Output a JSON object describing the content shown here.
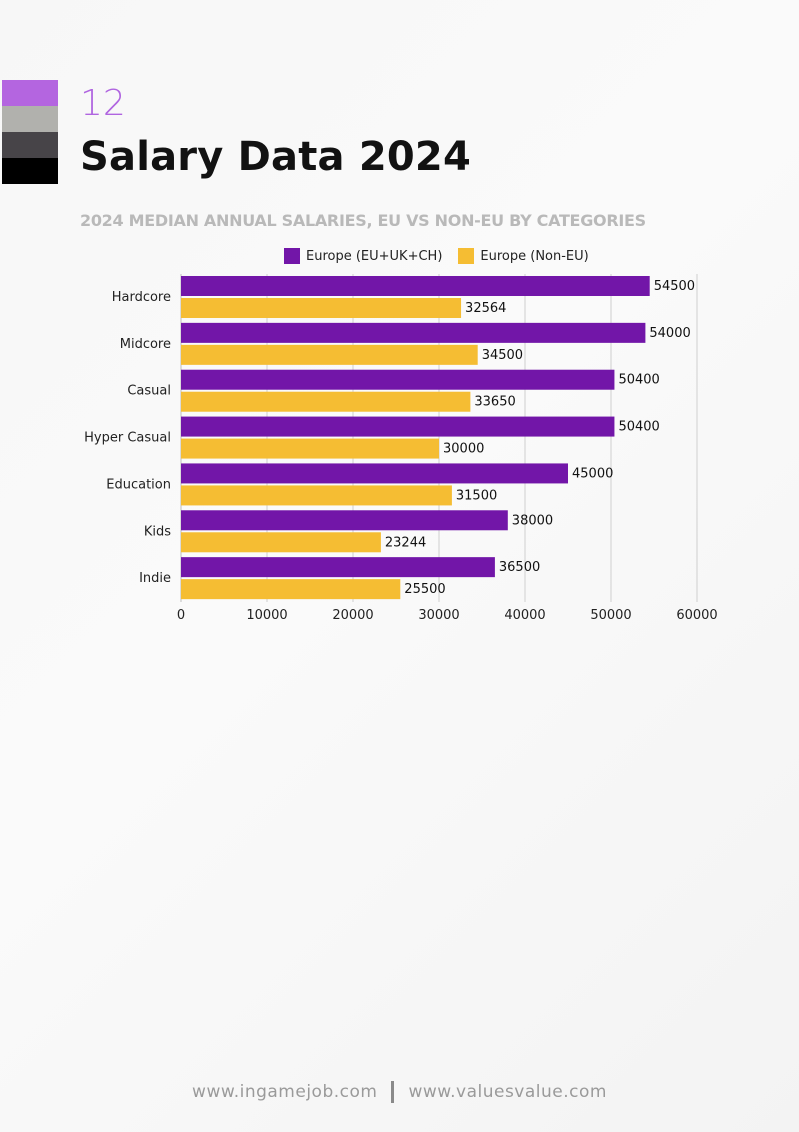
{
  "header": {
    "page_number": "12",
    "title": "Salary Data 2024",
    "subtitle": "2024 MEDIAN ANNUAL SALARIES, EU VS NON-EU BY CATEGORIES"
  },
  "swatch_colors": [
    "#b465e0",
    "#b1b1ad",
    "#474448",
    "#000000"
  ],
  "legend": [
    {
      "label": "Europe (EU+UK+CH)",
      "color": "#7216a8"
    },
    {
      "label": "Europe (Non-EU)",
      "color": "#f5bd33"
    }
  ],
  "chart_data": {
    "type": "bar",
    "orientation": "horizontal",
    "title": "2024 MEDIAN ANNUAL SALARIES, EU VS NON-EU BY CATEGORIES",
    "categories": [
      "Hardcore",
      "Midcore",
      "Casual",
      "Hyper Casual",
      "Education",
      "Kids",
      "Indie"
    ],
    "series": [
      {
        "name": "Europe (EU+UK+CH)",
        "color": "#7216a8",
        "values": [
          54500,
          54000,
          50400,
          50400,
          45000,
          38000,
          36500
        ]
      },
      {
        "name": "Europe (Non-EU)",
        "color": "#f5bd33",
        "values": [
          32564,
          34500,
          33650,
          30000,
          31500,
          23244,
          25500
        ]
      }
    ],
    "xlim": [
      0,
      60000
    ],
    "xticks": [
      0,
      10000,
      20000,
      30000,
      40000,
      50000,
      60000
    ],
    "grid": "vertical",
    "legend_position": "top",
    "data_labels": true
  },
  "footer": {
    "left": "www.ingamejob.com",
    "right": "www.valuesvalue.com"
  }
}
